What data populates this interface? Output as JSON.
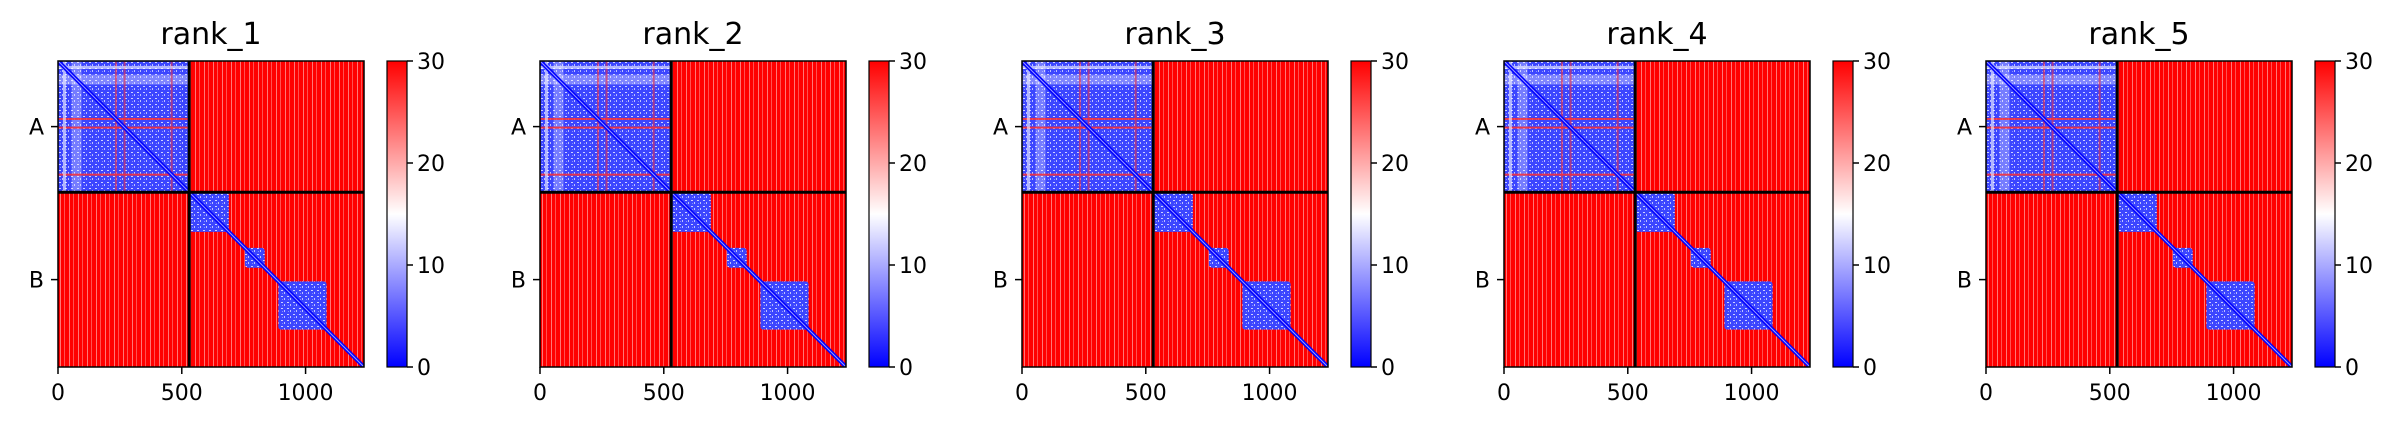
{
  "figure": {
    "panels": [
      {
        "title": "rank_1"
      },
      {
        "title": "rank_2"
      },
      {
        "title": "rank_3"
      },
      {
        "title": "rank_4"
      },
      {
        "title": "rank_5"
      }
    ]
  },
  "chart_data": {
    "type": "heatmap",
    "panel_titles": [
      "rank_1",
      "rank_2",
      "rank_3",
      "rank_4",
      "rank_5"
    ],
    "matrix_size": 1236,
    "chain_boundary": 530,
    "chain_labels": [
      "A",
      "B"
    ],
    "x_ticks": [
      0,
      500,
      1000
    ],
    "xlim": [
      0,
      1236
    ],
    "colorbar": {
      "min": 0,
      "max": 30,
      "ticks": [
        0,
        10,
        20,
        30
      ],
      "colors": [
        "#0000ff",
        "#ffffff",
        "#ff0000"
      ]
    },
    "domains_B": [
      [
        530,
        690
      ],
      [
        755,
        835
      ],
      [
        890,
        1085
      ]
    ],
    "stripes_A": [
      230,
      265,
      455
    ],
    "legend": "none",
    "grid": false
  }
}
